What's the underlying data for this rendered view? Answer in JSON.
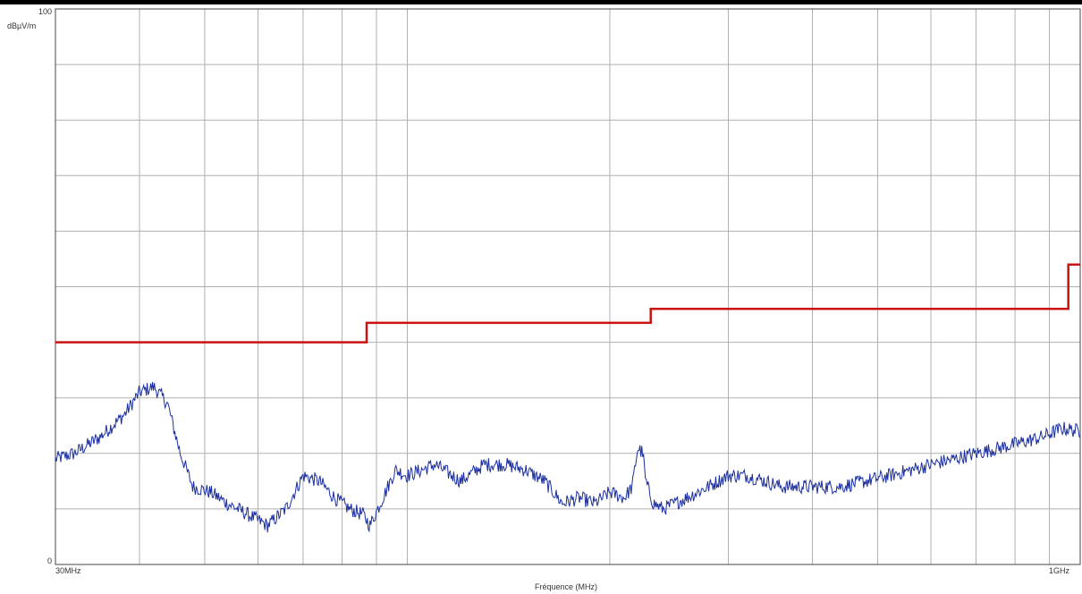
{
  "chart_data": {
    "type": "line",
    "title": "",
    "xlabel": "Fréquence (MHz)",
    "ylabel": "dBµV/m",
    "x_scale": "log",
    "xlim": [
      30,
      1000
    ],
    "ylim": [
      0,
      100
    ],
    "grid": true,
    "x_tick_labels": [
      "30MHz",
      "1GHz"
    ],
    "y_tick_labels": [
      "0",
      "100"
    ],
    "colors": {
      "limit": "#cc1111",
      "measurement": "#1a2ea0",
      "grid": "#b0b0b0",
      "axis": "#333333"
    },
    "series": [
      {
        "name": "",
        "color": "#cc1111",
        "x": [
          30,
          87,
          87,
          230,
          230,
          960,
          960,
          1000
        ],
        "y": [
          40,
          40,
          43.5,
          43.5,
          46,
          46,
          54,
          54
        ]
      },
      {
        "name": "",
        "color": "#1a2ea0",
        "x": [
          30,
          32,
          35,
          38,
          40,
          42,
          44,
          46,
          48,
          51,
          54,
          58,
          62,
          66,
          70,
          74,
          78,
          82,
          86,
          88,
          92,
          96,
          100,
          105,
          110,
          120,
          130,
          140,
          150,
          160,
          170,
          180,
          190,
          200,
          210,
          216,
          220,
          224,
          226,
          232,
          240,
          260,
          280,
          300,
          320,
          340,
          360,
          400,
          440,
          480,
          520,
          560,
          600,
          650,
          700,
          760,
          820,
          880,
          940,
          1000
        ],
        "y": [
          19,
          20,
          23,
          27,
          31,
          32,
          29,
          20,
          14,
          13,
          11,
          9,
          7,
          10,
          16,
          15,
          12,
          10,
          9,
          7,
          12,
          17,
          16,
          17,
          18,
          15,
          18,
          18,
          17,
          15,
          11,
          12,
          11,
          13,
          12,
          14,
          21,
          20,
          15,
          11,
          10,
          12,
          14,
          16,
          16,
          15,
          14,
          14,
          14,
          15,
          16,
          17,
          18,
          19,
          20,
          21,
          22,
          23,
          24.5,
          24
        ]
      }
    ]
  }
}
